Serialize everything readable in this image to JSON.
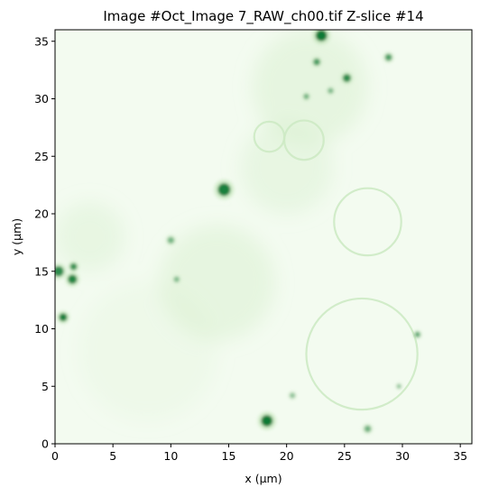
{
  "chart_data": {
    "type": "heatmap",
    "title": "Image #Oct_Image 7_RAW_ch00.tif Z-slice #14",
    "xlabel": "x (μm)",
    "ylabel": "y (μm)",
    "xlim": [
      0,
      36
    ],
    "ylim": [
      36,
      0
    ],
    "x_ticks": [
      "0",
      "5",
      "10",
      "15",
      "20",
      "25",
      "30",
      "35"
    ],
    "y_ticks": [
      "0",
      "5",
      "10",
      "15",
      "20",
      "25",
      "30",
      "35"
    ],
    "colormap": "Greens",
    "colors": {
      "background": "#f3fbf0",
      "dim": "#cdeac4",
      "bright": "#0e7a34"
    },
    "grid": false,
    "features": {
      "rings": [
        {
          "cx": 26.5,
          "cy": 7.8,
          "r": 4.8
        },
        {
          "cx": 27.0,
          "cy": 19.3,
          "r": 2.9
        },
        {
          "cx": 21.5,
          "cy": 26.4,
          "r": 1.7
        },
        {
          "cx": 18.5,
          "cy": 26.7,
          "r": 1.3
        }
      ],
      "spots": [
        {
          "x": 18.3,
          "y": 2.0,
          "r": 0.5,
          "i": 1.0
        },
        {
          "x": 0.7,
          "y": 11.0,
          "r": 0.35,
          "i": 0.95
        },
        {
          "x": 1.5,
          "y": 14.3,
          "r": 0.4,
          "i": 0.9
        },
        {
          "x": 0.3,
          "y": 15.0,
          "r": 0.45,
          "i": 0.85
        },
        {
          "x": 1.6,
          "y": 15.4,
          "r": 0.3,
          "i": 0.8
        },
        {
          "x": 14.6,
          "y": 22.1,
          "r": 0.55,
          "i": 0.95
        },
        {
          "x": 23.0,
          "y": 35.5,
          "r": 0.5,
          "i": 1.0
        },
        {
          "x": 25.2,
          "y": 31.8,
          "r": 0.35,
          "i": 0.85
        },
        {
          "x": 22.6,
          "y": 33.2,
          "r": 0.3,
          "i": 0.7
        },
        {
          "x": 28.8,
          "y": 33.6,
          "r": 0.3,
          "i": 0.7
        },
        {
          "x": 31.3,
          "y": 9.5,
          "r": 0.25,
          "i": 0.6
        },
        {
          "x": 27.0,
          "y": 1.3,
          "r": 0.3,
          "i": 0.55
        },
        {
          "x": 10.0,
          "y": 17.7,
          "r": 0.3,
          "i": 0.5
        },
        {
          "x": 10.5,
          "y": 14.3,
          "r": 0.25,
          "i": 0.45
        },
        {
          "x": 21.7,
          "y": 30.2,
          "r": 0.25,
          "i": 0.5
        },
        {
          "x": 23.8,
          "y": 30.7,
          "r": 0.25,
          "i": 0.45
        },
        {
          "x": 29.7,
          "y": 5.0,
          "r": 0.2,
          "i": 0.4
        },
        {
          "x": 20.5,
          "y": 4.2,
          "r": 0.25,
          "i": 0.4
        }
      ]
    }
  }
}
